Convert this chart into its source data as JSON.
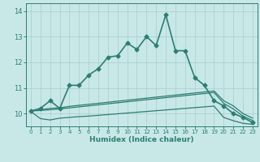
{
  "xlabel": "Humidex (Indice chaleur)",
  "xlim": [
    -0.5,
    23.5
  ],
  "ylim": [
    9.5,
    14.3
  ],
  "yticks": [
    10,
    11,
    12,
    13,
    14
  ],
  "xticks": [
    0,
    1,
    2,
    3,
    4,
    5,
    6,
    7,
    8,
    9,
    10,
    11,
    12,
    13,
    14,
    15,
    16,
    17,
    18,
    19,
    20,
    21,
    22,
    23
  ],
  "bg_color": "#c8e8e8",
  "line_color": "#2e7d72",
  "grid_color": "#a8cccc",
  "lines": [
    {
      "x": [
        0,
        1,
        2,
        3,
        4,
        5,
        6,
        7,
        8,
        9,
        10,
        11,
        12,
        13,
        14,
        15,
        16,
        17,
        18,
        19,
        20,
        21,
        22,
        23
      ],
      "y": [
        10.1,
        10.2,
        10.5,
        10.2,
        11.1,
        11.1,
        11.5,
        11.75,
        12.2,
        12.25,
        12.75,
        12.5,
        13.0,
        12.65,
        13.85,
        12.45,
        12.45,
        11.4,
        11.1,
        10.5,
        10.3,
        10.0,
        9.85,
        9.65
      ],
      "marker": "D",
      "markersize": 2.5,
      "linewidth": 1.2
    },
    {
      "x": [
        0,
        1,
        2,
        3,
        4,
        5,
        6,
        7,
        8,
        9,
        10,
        11,
        12,
        13,
        14,
        15,
        16,
        17,
        18,
        19,
        20,
        21,
        22,
        23
      ],
      "y": [
        10.1,
        10.15,
        10.2,
        10.22,
        10.28,
        10.32,
        10.36,
        10.4,
        10.44,
        10.48,
        10.52,
        10.56,
        10.6,
        10.64,
        10.68,
        10.72,
        10.76,
        10.8,
        10.84,
        10.88,
        10.5,
        10.3,
        10.0,
        9.82
      ],
      "marker": null,
      "linewidth": 0.9
    },
    {
      "x": [
        0,
        1,
        2,
        3,
        4,
        5,
        6,
        7,
        8,
        9,
        10,
        11,
        12,
        13,
        14,
        15,
        16,
        17,
        18,
        19,
        20,
        21,
        22,
        23
      ],
      "y": [
        10.1,
        10.12,
        10.15,
        10.18,
        10.22,
        10.26,
        10.3,
        10.34,
        10.38,
        10.42,
        10.46,
        10.5,
        10.54,
        10.58,
        10.62,
        10.66,
        10.7,
        10.74,
        10.78,
        10.82,
        10.4,
        10.18,
        9.9,
        9.73
      ],
      "marker": null,
      "linewidth": 0.9
    },
    {
      "x": [
        0,
        1,
        2,
        3,
        4,
        5,
        6,
        7,
        8,
        9,
        10,
        11,
        12,
        13,
        14,
        15,
        16,
        17,
        18,
        19,
        20,
        21,
        22,
        23
      ],
      "y": [
        10.08,
        9.8,
        9.75,
        9.82,
        9.85,
        9.88,
        9.9,
        9.93,
        9.96,
        9.99,
        10.02,
        10.05,
        10.08,
        10.11,
        10.14,
        10.17,
        10.2,
        10.23,
        10.26,
        10.29,
        9.85,
        9.72,
        9.62,
        9.58
      ],
      "marker": null,
      "linewidth": 0.9
    }
  ]
}
